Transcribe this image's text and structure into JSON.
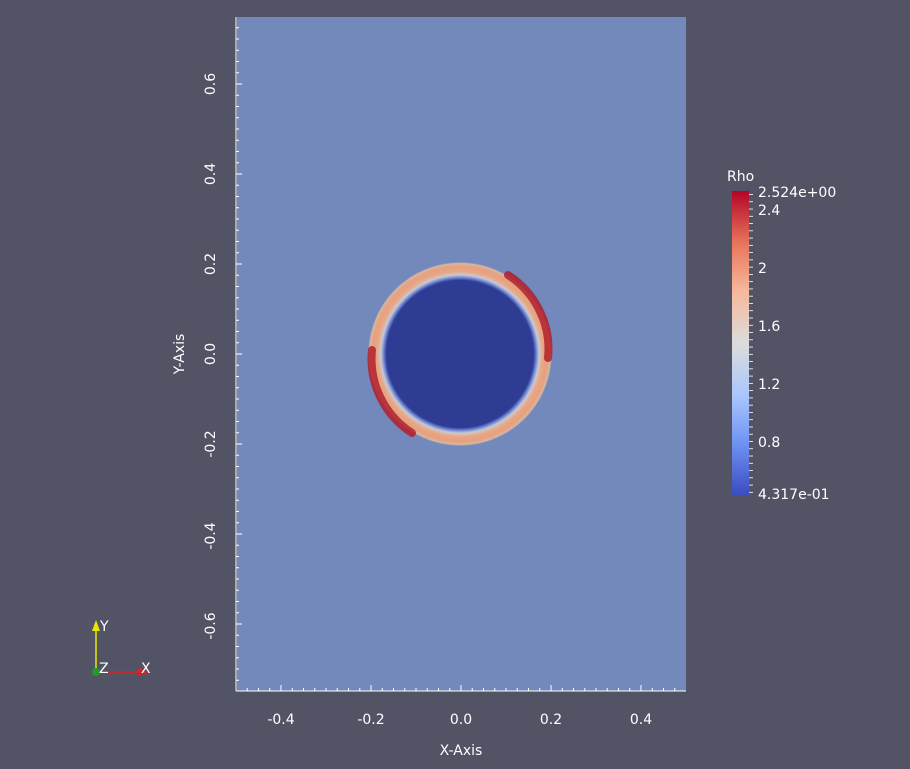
{
  "view": {
    "background_color": "#525466",
    "domain_color": "#7389bb"
  },
  "axes": {
    "x_label": "X-Axis",
    "y_label": "Y-Axis",
    "x_range": [
      -0.5,
      0.5
    ],
    "y_range": [
      -0.75,
      0.75
    ],
    "x_tick_labels": [
      "-0.4",
      "-0.2",
      "0.0",
      "0.2",
      "0.4"
    ],
    "y_tick_labels": [
      "-0.6",
      "-0.4",
      "-0.2",
      "0.0",
      "0.2",
      "0.4",
      "0.6"
    ]
  },
  "field": {
    "name": "Rho",
    "max_label": "2.524e+00",
    "min_label": "4.317e-01",
    "tick_labels": [
      "2.4",
      "2",
      "1.6",
      "1.2",
      "0.8"
    ],
    "range": [
      0.4317,
      2.524
    ],
    "colormap": [
      "#3b4cc0",
      "#6f92f3",
      "#aac7fd",
      "#dddcdc",
      "#f7b89c",
      "#e7745b",
      "#b40426"
    ],
    "ring_inner_radius": 0.17,
    "ring_outer_radius": 0.2,
    "interior_value_color": "#2b3990",
    "ring_peak_color": "#b3202a",
    "ring_mid_color": "#e6a57e"
  },
  "orientation": {
    "y_label": "Y",
    "x_label": "X",
    "z_label": "Z"
  }
}
